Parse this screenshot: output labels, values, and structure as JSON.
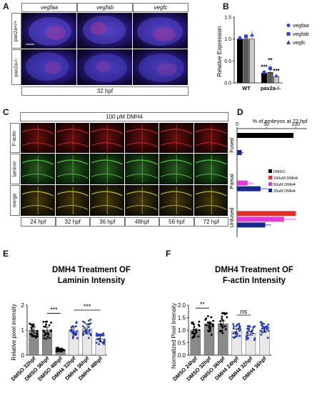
{
  "panels": {
    "a": "A",
    "b": "B",
    "c": "C",
    "d": "D",
    "e": "E",
    "f": "F"
  },
  "panelA": {
    "col_headers": [
      "vegfaa",
      "vegfab",
      "vegfc"
    ],
    "row_labels": [
      "pax2a+/+",
      "pax2a-/-"
    ],
    "footer": "32 hpf"
  },
  "panelC": {
    "treatment": "100 μM DMH4",
    "row_labels": [
      "F-actin",
      "laminin",
      "merge"
    ],
    "timepoints": [
      "24 hpf",
      "32 hpf",
      "36 hpf",
      "48hpf",
      "56 hpf",
      "72 hpf"
    ]
  },
  "chart_data": [
    {
      "id": "B",
      "type": "bar",
      "title": "",
      "xlabel": "",
      "ylabel": "Relative Expression",
      "ylim": [
        0,
        1.5
      ],
      "yticks": [
        "0.0",
        "0.5",
        "1.0",
        "1.5"
      ],
      "groups": [
        "WT",
        "pax2a-/-"
      ],
      "legend_position": "right",
      "series": [
        {
          "name": "vegfaa",
          "values": [
            1.0,
            0.22
          ],
          "err": [
            0.05,
            0.05
          ],
          "color": "#000000",
          "marker": "circle",
          "sig": [
            "",
            "***"
          ]
        },
        {
          "name": "vegfab",
          "values": [
            1.0,
            0.24
          ],
          "err": [
            0.12,
            0.18
          ],
          "color": "#5a5a5a",
          "marker": "square",
          "sig": [
            "",
            "**"
          ]
        },
        {
          "name": "vegfc",
          "values": [
            1.0,
            0.14
          ],
          "err": [
            0.18,
            0.04
          ],
          "color": "#c8c8c8",
          "marker": "triangle",
          "sig": [
            "",
            "***"
          ]
        }
      ]
    },
    {
      "id": "D",
      "type": "bar",
      "orientation": "horizontal",
      "title": "% of embryos at 72 hpf",
      "xlim": [
        0,
        100
      ],
      "xticks": [
        "0",
        "50",
        "100"
      ],
      "categories": [
        "Fused",
        "Partial",
        "Unfused"
      ],
      "legend_position": "right",
      "series": [
        {
          "name": "DMSO",
          "color": "#000000",
          "values": [
            96,
            0,
            0
          ],
          "err": [
            0,
            0,
            0
          ]
        },
        {
          "name": "100uM DMH4",
          "color": "#e0302a",
          "values": [
            0,
            0,
            100
          ],
          "err": [
            0,
            0,
            0
          ]
        },
        {
          "name": "50uM DMH4",
          "color": "#e23ad6",
          "values": [
            0,
            18,
            80
          ],
          "err": [
            0,
            10,
            20
          ]
        },
        {
          "name": "25uM DMH4",
          "color": "#1a2a8a",
          "values": [
            8,
            40,
            48
          ],
          "err": [
            3,
            12,
            10
          ]
        }
      ]
    },
    {
      "id": "E",
      "type": "bar",
      "title": "DMH4 Treatment OF Laminin Intensity",
      "xlabel": "",
      "ylabel": "Relative pixel intensity",
      "ylim": [
        0,
        2
      ],
      "yticks": [
        "0",
        "1",
        "2"
      ],
      "categories": [
        "DMSO 32hpf",
        "DMSO 36hpf",
        "DMSO 48hpf",
        "DMH4 32hpf",
        "DMH4 36hpf",
        "DMH4 48hpf"
      ],
      "values": [
        1.0,
        1.0,
        0.22,
        0.98,
        1.05,
        0.65
      ],
      "err": [
        0.12,
        0.12,
        0.05,
        0.15,
        0.2,
        0.12
      ],
      "colors": [
        "#8a8a8a",
        "#8a8a8a",
        "#8a8a8a",
        "#e8e8e8",
        "#e8e8e8",
        "#e8e8e8"
      ],
      "dot_colors": [
        "#000000",
        "#000000",
        "#000000",
        "#1a3ad6",
        "#1a3ad6",
        "#1a3ad6"
      ],
      "annotations": [
        {
          "text": "***",
          "from": 1,
          "to": 2
        },
        {
          "text": "***",
          "from": 3,
          "to": 5
        }
      ]
    },
    {
      "id": "F",
      "type": "bar",
      "title": "DMH4 Treatment OF F-actin Intensity",
      "xlabel": "",
      "ylabel": "Normalized Pixel Intensity",
      "ylim": [
        0,
        2
      ],
      "yticks": [
        "0.0",
        "0.5",
        "1.0",
        "1.5",
        "2.0"
      ],
      "categories": [
        "DMSO 24hpf",
        "DMSO 32hpf",
        "DMSO 36hpf",
        "DMH4 24hpf",
        "DMH4 32hpf",
        "DMH4 36hpf"
      ],
      "values": [
        1.0,
        1.25,
        1.25,
        0.95,
        0.88,
        1.0
      ],
      "err": [
        0.05,
        0.08,
        0.12,
        0.1,
        0.08,
        0.08
      ],
      "colors": [
        "#8a8a8a",
        "#8a8a8a",
        "#8a8a8a",
        "#e8e8e8",
        "#e8e8e8",
        "#e8e8e8"
      ],
      "dot_colors": [
        "#000000",
        "#000000",
        "#000000",
        "#1a3ad6",
        "#1a3ad6",
        "#1a3ad6"
      ],
      "annotations": [
        {
          "text": "**",
          "from": 0,
          "to": 1
        },
        {
          "text": "ns",
          "from": 3,
          "to": 4
        }
      ]
    }
  ]
}
